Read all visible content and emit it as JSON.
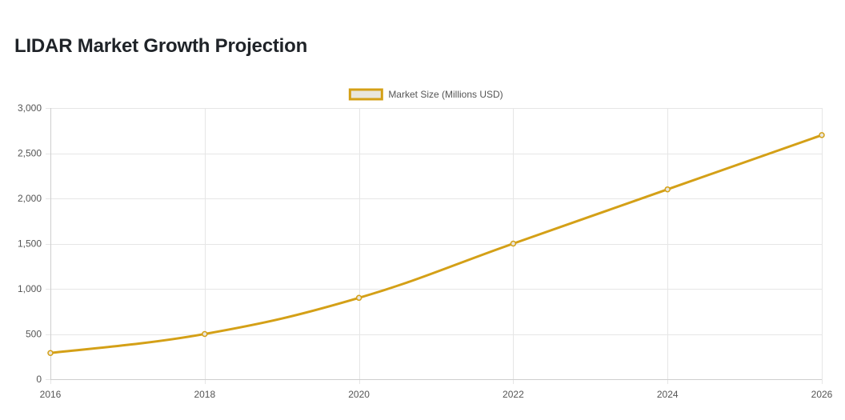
{
  "page": {
    "title": "LIDAR Market Growth Projection"
  },
  "chart_data": {
    "type": "line",
    "title": "",
    "xlabel": "",
    "ylabel": "",
    "x": [
      2016,
      2018,
      2020,
      2022,
      2024,
      2026
    ],
    "x_tick_labels": [
      "2016",
      "2018",
      "2020",
      "2022",
      "2024",
      "2026"
    ],
    "y_tick_labels": [
      "0",
      "500",
      "1,000",
      "1,500",
      "2,000",
      "2,500",
      "3,000"
    ],
    "y_ticks": [
      0,
      500,
      1000,
      1500,
      2000,
      2500,
      3000
    ],
    "ylim": [
      0,
      3000
    ],
    "xlim": [
      2016,
      2026
    ],
    "grid": true,
    "legend_position": "top-center",
    "series": [
      {
        "name": "Market Size (Millions USD)",
        "values": [
          290,
          500,
          900,
          1500,
          2100,
          2700
        ],
        "color": "#d4a017",
        "fill_color": "#e9e6dd"
      }
    ]
  }
}
